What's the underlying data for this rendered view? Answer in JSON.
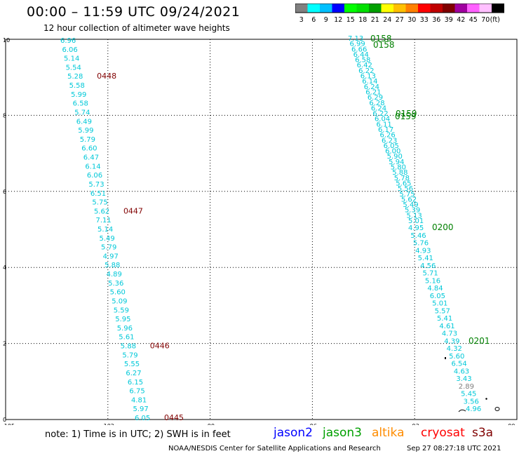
{
  "header": {
    "title": "00:00 – 11:59 UTC 09/24/2021",
    "subtitle": "12 hour collection of altimeter wave heights"
  },
  "legend": {
    "colors": [
      "#808080",
      "#00ffff",
      "#00c0ff",
      "#0000ff",
      "#00ff00",
      "#00e000",
      "#00a000",
      "#ffff00",
      "#ffc000",
      "#ff8000",
      "#ff0000",
      "#c00000",
      "#800000",
      "#a000a0",
      "#ff60ff",
      "#ffc0ff",
      "#000000"
    ],
    "labels": [
      "3",
      "6",
      "9",
      "12",
      "15",
      "18",
      "21",
      "24",
      "27",
      "30",
      "33",
      "36",
      "39",
      "42",
      "45",
      "70",
      "(ft)"
    ]
  },
  "axes": {
    "x_ticks": [
      "-105",
      "-102",
      "-99",
      "-96",
      "-93",
      "-90"
    ],
    "y_ticks": [
      "0",
      "2",
      "4",
      "6",
      "8",
      "10"
    ]
  },
  "tracks": {
    "left_values": [
      "6.96",
      "6.06",
      "5.14",
      "5.54",
      "5.28",
      "5.58",
      "5.99",
      "6.58",
      "5.74",
      "6.49",
      "5.99",
      "5.79",
      "6.60",
      "6.47",
      "6.14",
      "6.06",
      "5.73",
      "6.51",
      "5.75",
      "5.62",
      "7.11",
      "5.14",
      "5.49",
      "5.79",
      "4.97",
      "5.88",
      "4.89",
      "5.36",
      "5.60",
      "5.09",
      "5.59",
      "5.95",
      "5.96",
      "5.61",
      "5.88",
      "5.79",
      "5.55",
      "6.27",
      "6.15",
      "6.75",
      "4.81",
      "5.97",
      "6.05"
    ],
    "left_times": [
      {
        "t": "0448",
        "i": 4
      },
      {
        "t": "0447",
        "i": 19
      },
      {
        "t": "0446",
        "i": 34
      },
      {
        "t": "0445",
        "i": 42
      }
    ],
    "right_upper": [
      "7.13",
      "6.99",
      "6.66",
      "6.44",
      "6.58",
      "6.42",
      "6.22",
      "6.13",
      "6.14",
      "6.24",
      "6.21",
      "6.29",
      "6.28",
      "6.24",
      "6.22",
      "6.04",
      "6.11",
      "6.17",
      "6.26",
      "6.23",
      "6.05",
      "6.00",
      "5.90",
      "5.94",
      "5.80",
      "5.88",
      "5.78",
      "5.65",
      "5.56",
      "5.75",
      "5.62",
      "5.49",
      "5.39",
      "5.13",
      "5.01"
    ],
    "right_lower": [
      "4.95",
      "5.46",
      "5.76",
      "4.93",
      "5.41",
      "4.56",
      "5.71",
      "5.16",
      "4.84",
      "6.05",
      "5.01",
      "5.57",
      "5.41",
      "4.61",
      "4.73",
      "4.39",
      "4.32",
      "5.60",
      "6.54",
      "4.63",
      "3.43",
      "2.89",
      "5.45",
      "3.56",
      "4.96"
    ],
    "right_times": [
      {
        "t": "0158",
        "x": 528,
        "y": 59
      },
      {
        "t": "0158",
        "x": 532,
        "y": 68
      },
      {
        "t": "0159",
        "x": 564,
        "y": 166
      },
      {
        "t": "0159",
        "x": 563,
        "y": 170
      },
      {
        "t": "0200",
        "x": 616,
        "y": 328
      },
      {
        "t": "0201",
        "x": 668,
        "y": 490
      }
    ]
  },
  "footer": {
    "note": "note: 1) Time is in UTC; 2) SWH is in feet",
    "satellites": [
      {
        "name": "jason2",
        "color": "#0000ff"
      },
      {
        "name": "jason3",
        "color": "#00a000"
      },
      {
        "name": "altika",
        "color": "#ff8c00"
      },
      {
        "name": "cryosat",
        "color": "#ff0000"
      },
      {
        "name": "s3a",
        "color": "#800000"
      }
    ],
    "credit": "NOAA/NESDIS Center for Satellite Applications and Research",
    "timestamp": "Sep 27 08:27:18 UTC 2021"
  }
}
